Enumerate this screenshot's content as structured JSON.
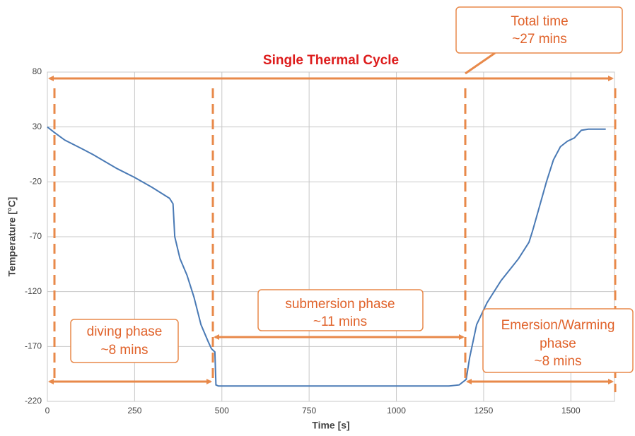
{
  "chart_data": {
    "type": "line",
    "title": "Single Thermal Cycle",
    "x_label": "Time [s]",
    "y_label": "Temperature [°C]",
    "x": [
      0,
      20,
      50,
      100,
      130,
      200,
      250,
      300,
      350,
      360,
      365,
      380,
      400,
      420,
      440,
      460,
      470,
      480,
      483,
      490,
      600,
      800,
      1000,
      1150,
      1180,
      1200,
      1210,
      1230,
      1260,
      1300,
      1350,
      1380,
      1390,
      1430,
      1450,
      1470,
      1490,
      1510,
      1530,
      1550,
      1600
    ],
    "series": [
      {
        "color": "#4a7ab5",
        "values": [
          30,
          25,
          18,
          10,
          5,
          -8,
          -16,
          -25,
          -35,
          -40,
          -70,
          -90,
          -105,
          -125,
          -150,
          -165,
          -172,
          -175,
          -205,
          -206,
          -206,
          -206,
          -206,
          -206,
          -205,
          -200,
          -180,
          -150,
          -130,
          -110,
          -90,
          -75,
          -65,
          -20,
          0,
          12,
          17,
          20,
          27,
          28,
          28
        ]
      }
    ],
    "xlim": [
      0,
      1625
    ],
    "xticks": [
      0,
      250,
      500,
      750,
      1000,
      1250,
      1500
    ],
    "ylim": [
      -220,
      80
    ],
    "yticks": [
      -220,
      -170,
      -120,
      -70,
      -20,
      30,
      80
    ],
    "grid": true,
    "annotations": [
      {
        "lines": [
          "Total time",
          "~27 mins"
        ]
      },
      {
        "lines": [
          "diving phase",
          "~8 mins"
        ]
      },
      {
        "lines": [
          "submersion phase",
          "~11 mins"
        ]
      },
      {
        "lines": [
          "Emersion/Warming",
          "phase",
          "~8 mins"
        ]
      }
    ]
  }
}
